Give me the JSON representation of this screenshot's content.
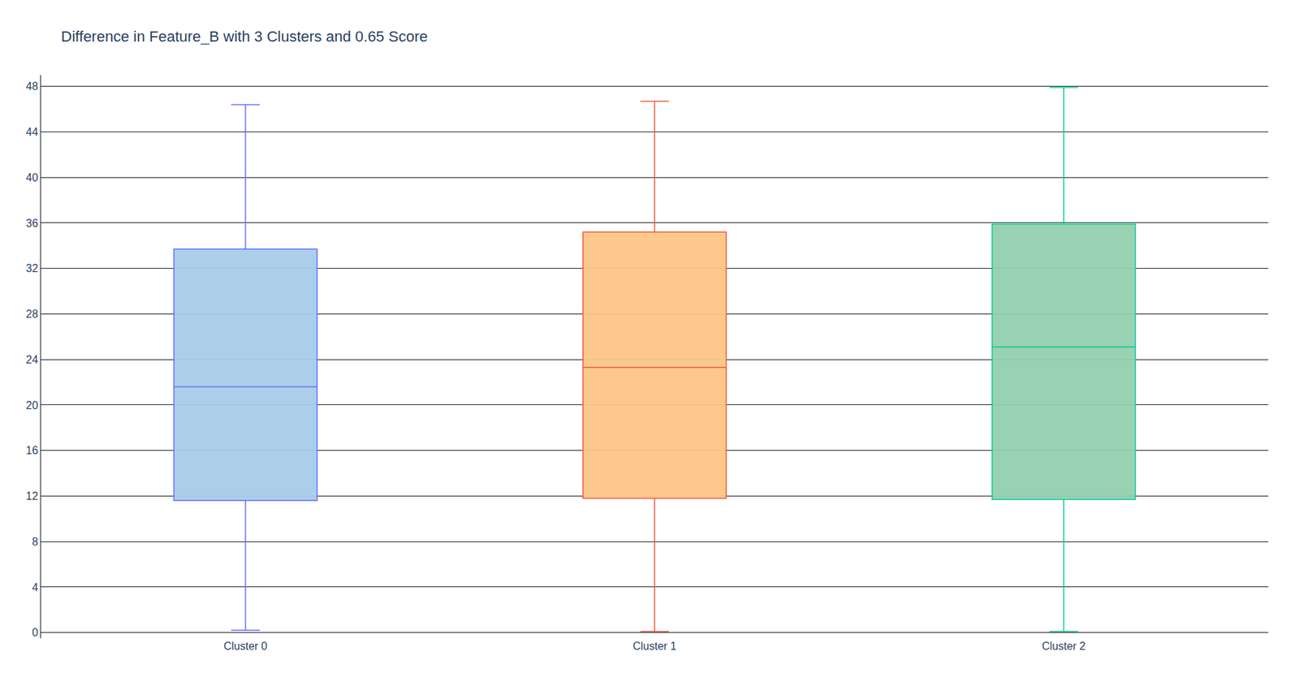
{
  "chart_data": {
    "type": "box",
    "title": "Difference in Feature_B with 3 Clusters and 0.65 Score",
    "categories": [
      "Cluster 0",
      "Cluster 1",
      "Cluster 2"
    ],
    "lowerfence": [
      0.2,
      0.1,
      0.1
    ],
    "q1": [
      11.6,
      11.8,
      11.7
    ],
    "median": [
      21.6,
      23.3,
      25.1
    ],
    "q3": [
      33.7,
      35.2,
      35.9
    ],
    "upperfence": [
      46.4,
      46.7,
      47.9
    ],
    "colors": [
      "#636efa",
      "#ef553b",
      "#00cc96"
    ],
    "ylim": [
      -0.5,
      49
    ],
    "yticks": [
      0,
      4,
      8,
      12,
      16,
      20,
      24,
      28,
      32,
      36,
      40,
      44,
      48
    ],
    "grid": true
  }
}
